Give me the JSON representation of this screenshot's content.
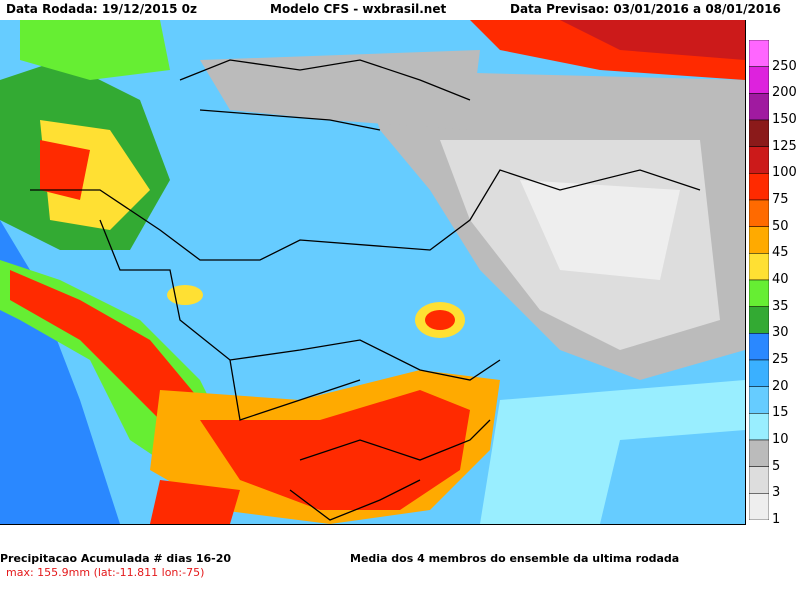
{
  "header": {
    "left": "Data Rodada: 19/12/2015 0z",
    "center": "Modelo CFS - wxbrasil.net",
    "right": "Data Previsao: 03/01/2016 a 08/01/2016"
  },
  "colorbar": {
    "levels": [
      "250",
      "200",
      "150",
      "125",
      "100",
      "75",
      "50",
      "45",
      "40",
      "35",
      "30",
      "25",
      "20",
      "15",
      "10",
      "5",
      "3",
      "1"
    ],
    "colors": [
      "#ff66ff",
      "#dd22dd",
      "#a01aa0",
      "#8b1a1a",
      "#cc1a1a",
      "#ff2a00",
      "#ff6a00",
      "#ffaa00",
      "#ffe033",
      "#66ee33",
      "#33aa33",
      "#2a88ff",
      "#3ab0ff",
      "#66ccff",
      "#99eeff",
      "#bbbbbb",
      "#dddddd",
      "#eeeeee"
    ]
  },
  "footer": {
    "left": "Precipitacao Acumulada # dias 16-20",
    "right": "Media dos 4 membros do ensemble da ultima rodada",
    "max": "max: 155.9mm (lat:-11.811 lon:-75)"
  }
}
